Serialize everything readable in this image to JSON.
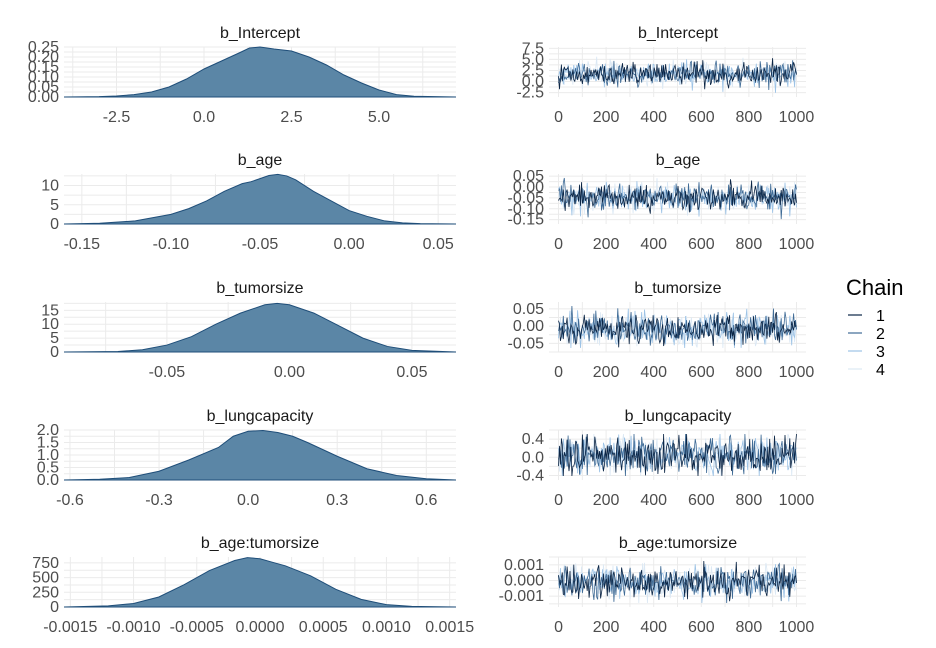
{
  "chart_data": [
    {
      "type": "area",
      "title": "b_Intercept",
      "xlim": [
        -4,
        7.2
      ],
      "ylim": [
        0,
        0.25
      ],
      "xticks": [
        -2.5,
        0.0,
        2.5,
        5.0
      ],
      "xtick_labels": [
        "-2.5",
        "0.0",
        "2.5",
        "5.0"
      ],
      "yticks": [
        0.0,
        0.05,
        0.1,
        0.15,
        0.2,
        0.25
      ],
      "ytick_labels": [
        "0.00",
        "0.05",
        "0.10",
        "0.15",
        "0.20",
        "0.25"
      ],
      "x": [
        -4,
        -3,
        -2.5,
        -2,
        -1.5,
        -1,
        -0.5,
        0,
        0.5,
        1,
        1.3,
        1.6,
        2,
        2.5,
        3,
        3.5,
        4,
        4.5,
        5,
        5.5,
        6,
        7.2
      ],
      "y": [
        0.0,
        0.002,
        0.005,
        0.012,
        0.025,
        0.05,
        0.09,
        0.14,
        0.18,
        0.22,
        0.245,
        0.25,
        0.24,
        0.23,
        0.2,
        0.16,
        0.11,
        0.07,
        0.035,
        0.012,
        0.004,
        0.0
      ],
      "grid": true,
      "fill_color": "#5b86a6"
    },
    {
      "type": "line",
      "title": "b_Intercept",
      "xlim": [
        -40,
        1040
      ],
      "ylim": [
        -3.5,
        7.8
      ],
      "xticks": [
        0,
        200,
        400,
        600,
        800,
        1000
      ],
      "xtick_labels": [
        "0",
        "200",
        "400",
        "600",
        "800",
        "1000"
      ],
      "yticks": [
        -2.5,
        0.0,
        2.5,
        5.0,
        7.5
      ],
      "ytick_labels": [
        "-2.5",
        "0.0",
        "2.5",
        "5.0",
        "7.5"
      ],
      "trace": {
        "center": 1.7,
        "sd": 1.3,
        "iterations": 1000
      },
      "series": [
        {
          "name": "1"
        },
        {
          "name": "2"
        },
        {
          "name": "3"
        },
        {
          "name": "4"
        }
      ],
      "grid": true
    },
    {
      "type": "area",
      "title": "b_age",
      "xlim": [
        -0.16,
        0.06
      ],
      "ylim": [
        0,
        13
      ],
      "xticks": [
        -0.15,
        -0.1,
        -0.05,
        0.0,
        0.05
      ],
      "xtick_labels": [
        "-0.15",
        "-0.10",
        "-0.05",
        "0.00",
        "0.05"
      ],
      "yticks": [
        0,
        5,
        10
      ],
      "ytick_labels": [
        "0",
        "5",
        "10"
      ],
      "x": [
        -0.16,
        -0.14,
        -0.12,
        -0.1,
        -0.09,
        -0.08,
        -0.07,
        -0.06,
        -0.055,
        -0.05,
        -0.045,
        -0.04,
        -0.035,
        -0.03,
        -0.02,
        -0.01,
        0.0,
        0.01,
        0.02,
        0.03,
        0.04,
        0.06
      ],
      "y": [
        0,
        0.2,
        0.8,
        2.5,
        4,
        6,
        8.5,
        10.5,
        11,
        11.8,
        12.6,
        12.9,
        12.5,
        11.5,
        8.5,
        6,
        3.5,
        2,
        0.8,
        0.3,
        0.1,
        0
      ],
      "grid": true,
      "fill_color": "#5b86a6"
    },
    {
      "type": "line",
      "title": "b_age",
      "xlim": [
        -40,
        1040
      ],
      "ylim": [
        -0.17,
        0.06
      ],
      "xticks": [
        0,
        200,
        400,
        600,
        800,
        1000
      ],
      "xtick_labels": [
        "0",
        "200",
        "400",
        "600",
        "800",
        "1000"
      ],
      "yticks": [
        -0.15,
        -0.1,
        -0.05,
        0.0,
        0.05
      ],
      "ytick_labels": [
        "-0.15",
        "-0.10",
        "-0.05",
        "0.00",
        "0.05"
      ],
      "trace": {
        "center": -0.047,
        "sd": 0.03,
        "iterations": 1000
      },
      "series": [
        {
          "name": "1"
        },
        {
          "name": "2"
        },
        {
          "name": "3"
        },
        {
          "name": "4"
        }
      ],
      "grid": true
    },
    {
      "type": "area",
      "title": "b_tumorsize",
      "xlim": [
        -0.092,
        0.068
      ],
      "ylim": [
        0,
        18
      ],
      "xticks": [
        -0.05,
        0.0,
        0.05
      ],
      "xtick_labels": [
        "-0.05",
        "0.00",
        "0.05"
      ],
      "yticks": [
        0,
        5,
        10,
        15
      ],
      "ytick_labels": [
        "0",
        "5",
        "10",
        "15"
      ],
      "x": [
        -0.092,
        -0.07,
        -0.06,
        -0.05,
        -0.04,
        -0.03,
        -0.02,
        -0.01,
        -0.005,
        0.0,
        0.01,
        0.02,
        0.03,
        0.04,
        0.05,
        0.068
      ],
      "y": [
        0,
        0.2,
        0.8,
        2.5,
        5.5,
        10,
        14,
        17,
        17.5,
        17,
        14,
        9.5,
        5,
        2,
        0.6,
        0
      ],
      "grid": true,
      "fill_color": "#5b86a6"
    },
    {
      "type": "line",
      "title": "b_tumorsize",
      "xlim": [
        -40,
        1040
      ],
      "ylim": [
        -0.075,
        0.07
      ],
      "xticks": [
        0,
        200,
        400,
        600,
        800,
        1000
      ],
      "xtick_labels": [
        "0",
        "200",
        "400",
        "600",
        "800",
        "1000"
      ],
      "yticks": [
        -0.05,
        0.0,
        0.05
      ],
      "ytick_labels": [
        "-0.05",
        "0.00",
        "0.05"
      ],
      "trace": {
        "center": -0.008,
        "sd": 0.022,
        "iterations": 1000
      },
      "series": [
        {
          "name": "1"
        },
        {
          "name": "2"
        },
        {
          "name": "3"
        },
        {
          "name": "4"
        }
      ],
      "grid": true
    },
    {
      "type": "area",
      "title": "b_lungcapacity",
      "xlim": [
        -0.62,
        0.7
      ],
      "ylim": [
        0,
        2.0
      ],
      "xticks": [
        -0.6,
        -0.3,
        0.0,
        0.3,
        0.6
      ],
      "xtick_labels": [
        "-0.6",
        "-0.3",
        "0.0",
        "0.3",
        "0.6"
      ],
      "yticks": [
        0.0,
        0.5,
        1.0,
        1.5,
        2.0
      ],
      "ytick_labels": [
        "0.0",
        "0.5",
        "1.0",
        "1.5",
        "2.0"
      ],
      "x": [
        -0.62,
        -0.5,
        -0.4,
        -0.3,
        -0.2,
        -0.1,
        -0.05,
        0.0,
        0.05,
        0.1,
        0.15,
        0.2,
        0.3,
        0.4,
        0.5,
        0.6,
        0.7
      ],
      "y": [
        0,
        0.03,
        0.1,
        0.35,
        0.8,
        1.3,
        1.75,
        1.95,
        1.98,
        1.9,
        1.75,
        1.5,
        0.95,
        0.45,
        0.18,
        0.05,
        0
      ],
      "grid": true,
      "fill_color": "#5b86a6"
    },
    {
      "type": "line",
      "title": "b_lungcapacity",
      "xlim": [
        -40,
        1040
      ],
      "ylim": [
        -0.5,
        0.6
      ],
      "xticks": [
        0,
        200,
        400,
        600,
        800,
        1000
      ],
      "xtick_labels": [
        "0",
        "200",
        "400",
        "600",
        "800",
        "1000"
      ],
      "yticks": [
        -0.4,
        0.0,
        0.4
      ],
      "ytick_labels": [
        "-0.4",
        "0.0",
        "0.4"
      ],
      "trace": {
        "center": 0.04,
        "sd": 0.2,
        "iterations": 1000
      },
      "series": [
        {
          "name": "1"
        },
        {
          "name": "2"
        },
        {
          "name": "3"
        },
        {
          "name": "4"
        }
      ],
      "grid": true
    },
    {
      "type": "area",
      "title": "b_age:tumorsize",
      "xlim": [
        -0.00155,
        0.00155
      ],
      "ylim": [
        0,
        850
      ],
      "xticks": [
        -0.0015,
        -0.001,
        -0.0005,
        0.0,
        0.0005,
        0.001,
        0.0015
      ],
      "xtick_labels": [
        "-0.0015",
        "-0.0010",
        "-0.0005",
        "0.0000",
        "0.0005",
        "0.0010",
        "0.0015"
      ],
      "yticks": [
        0,
        250,
        500,
        750
      ],
      "ytick_labels": [
        "0",
        "250",
        "500",
        "750"
      ],
      "x": [
        -0.00155,
        -0.0012,
        -0.001,
        -0.0008,
        -0.0006,
        -0.0004,
        -0.0002,
        -0.0001,
        0.0,
        0.0001,
        0.0002,
        0.0004,
        0.0006,
        0.0008,
        0.001,
        0.0012,
        0.00155
      ],
      "y": [
        0,
        20,
        60,
        170,
        380,
        620,
        790,
        840,
        820,
        760,
        700,
        530,
        300,
        130,
        40,
        10,
        0
      ],
      "grid": true,
      "fill_color": "#5b86a6"
    },
    {
      "type": "line",
      "title": "b_age:tumorsize",
      "xlim": [
        -40,
        1040
      ],
      "ylim": [
        -0.0017,
        0.0015
      ],
      "xticks": [
        0,
        200,
        400,
        600,
        800,
        1000
      ],
      "xtick_labels": [
        "0",
        "200",
        "400",
        "600",
        "800",
        "1000"
      ],
      "yticks": [
        -0.001,
        0.0,
        0.001
      ],
      "ytick_labels": [
        "-0.001",
        "0.000",
        "0.001"
      ],
      "trace": {
        "center": -0.0001,
        "sd": 0.0005,
        "iterations": 1000
      },
      "series": [
        {
          "name": "1"
        },
        {
          "name": "2"
        },
        {
          "name": "3"
        },
        {
          "name": "4"
        }
      ],
      "grid": true
    }
  ],
  "legend": {
    "title": "Chain",
    "placement": "right",
    "items": [
      {
        "label": "1",
        "color": "#0b2545"
      },
      {
        "label": "2",
        "color": "#3f6b96"
      },
      {
        "label": "3",
        "color": "#9dc3e6"
      },
      {
        "label": "4",
        "color": "#dbe8f4"
      }
    ]
  },
  "colors": {
    "density_fill": "#5b86a6",
    "density_outline": "#1f4e79",
    "grid": "#ebebeb"
  }
}
